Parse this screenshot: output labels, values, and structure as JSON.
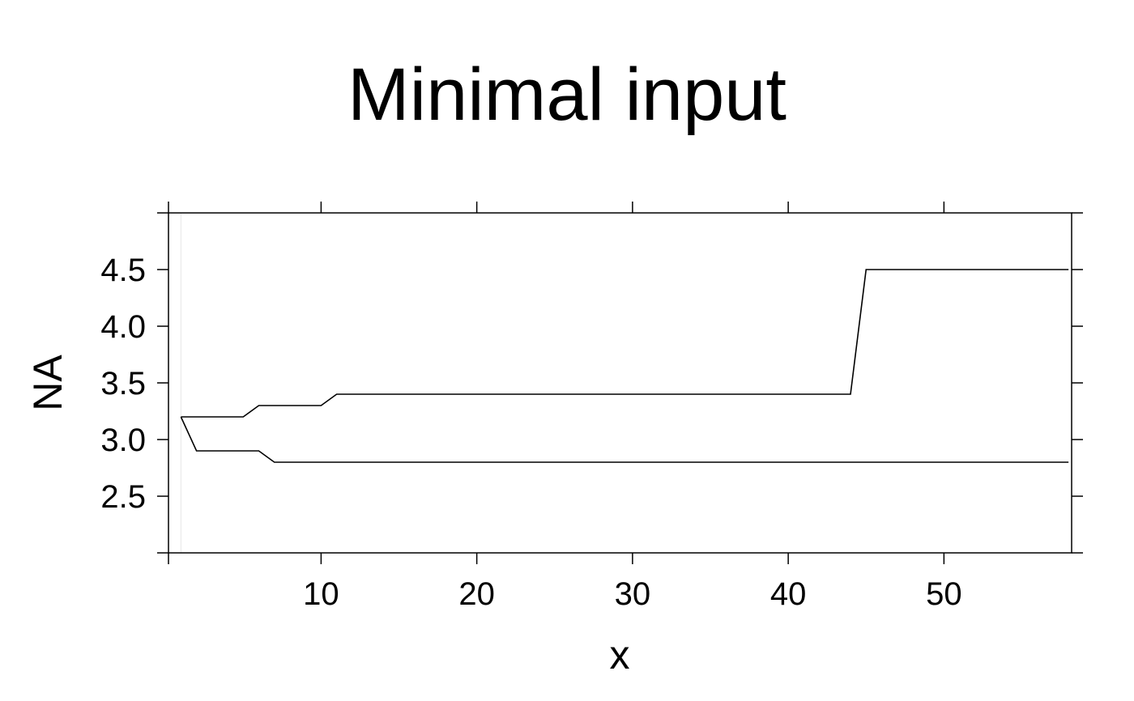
{
  "chart_data": {
    "type": "line",
    "title": "Minimal input",
    "xlabel": "x",
    "ylabel": "NA",
    "xlim": [
      0.2,
      58.2
    ],
    "ylim": [
      2.0,
      5.0
    ],
    "x_ticks": [
      10,
      20,
      30,
      40,
      50
    ],
    "x_tick_labels": [
      "10",
      "20",
      "30",
      "40",
      "50"
    ],
    "y_ticks": [
      2.5,
      3.0,
      3.5,
      4.0,
      4.5
    ],
    "y_tick_labels": [
      "2.5",
      "3.0",
      "3.5",
      "4.0",
      "4.5"
    ],
    "grid": false,
    "x": [
      1,
      2,
      3,
      4,
      5,
      6,
      7,
      8,
      9,
      10,
      11,
      12,
      13,
      14,
      15,
      16,
      17,
      18,
      19,
      20,
      21,
      22,
      23,
      24,
      25,
      26,
      27,
      28,
      29,
      30,
      31,
      32,
      33,
      34,
      35,
      36,
      37,
      38,
      39,
      40,
      41,
      42,
      43,
      44,
      45,
      46,
      47,
      48,
      49,
      50,
      51,
      52,
      53,
      54,
      55,
      56,
      57,
      58
    ],
    "series": [
      {
        "values": [
          3.2,
          3.2,
          3.2,
          3.2,
          3.2,
          3.3,
          3.3,
          3.3,
          3.3,
          3.3,
          3.4,
          3.4,
          3.4,
          3.4,
          3.4,
          3.4,
          3.4,
          3.4,
          3.4,
          3.4,
          3.4,
          3.4,
          3.4,
          3.4,
          3.4,
          3.4,
          3.4,
          3.4,
          3.4,
          3.4,
          3.4,
          3.4,
          3.4,
          3.4,
          3.4,
          3.4,
          3.4,
          3.4,
          3.4,
          3.4,
          3.4,
          3.4,
          3.4,
          3.4,
          4.5,
          4.5,
          4.5,
          4.5,
          4.5,
          4.5,
          4.5,
          4.5,
          4.5,
          4.5,
          4.5,
          4.5,
          4.5,
          4.5
        ],
        "color": "#000000"
      },
      {
        "values": [
          3.2,
          2.9,
          2.9,
          2.9,
          2.9,
          2.9,
          2.8,
          2.8,
          2.8,
          2.8,
          2.8,
          2.8,
          2.8,
          2.8,
          2.8,
          2.8,
          2.8,
          2.8,
          2.8,
          2.8,
          2.8,
          2.8,
          2.8,
          2.8,
          2.8,
          2.8,
          2.8,
          2.8,
          2.8,
          2.8,
          2.8,
          2.8,
          2.8,
          2.8,
          2.8,
          2.8,
          2.8,
          2.8,
          2.8,
          2.8,
          2.8,
          2.8,
          2.8,
          2.8,
          2.8,
          2.8,
          2.8,
          2.8,
          2.8,
          2.8,
          2.8,
          2.8,
          2.8,
          2.8,
          2.8,
          2.8,
          2.8,
          2.8
        ],
        "color": "#000000"
      }
    ],
    "reference_line": {
      "x": 1,
      "color": "#e6e6e6"
    }
  }
}
